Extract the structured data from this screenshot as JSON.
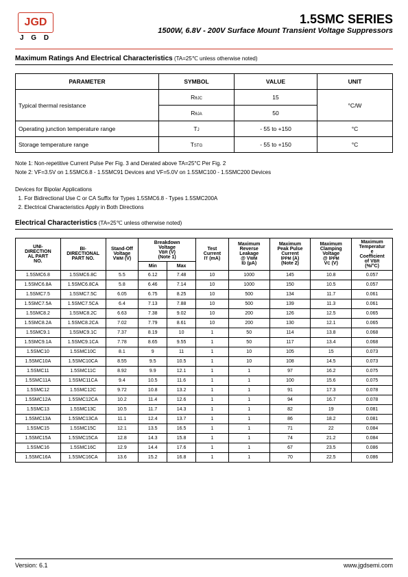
{
  "logo": {
    "mark": "JGD",
    "text": "J G D"
  },
  "title": "1.5SMC SERIES",
  "subtitle": "1500W, 6.8V - 200V Surface Mount Transient Voltage Suppressors",
  "section1": {
    "heading": "Maximum Ratings And Electrical Characteristics",
    "sub": "(TA=25℃ unless otherwise noted)"
  },
  "table1": {
    "headers": [
      "PARAMETER",
      "SYMBOL",
      "VALUE",
      "UNIT"
    ],
    "rows": [
      {
        "param": "Typical thermal resistance",
        "rowspan_param": 2,
        "symbol": "RθJC",
        "value": "15",
        "unit": "°C/W",
        "rowspan_unit": 2
      },
      {
        "symbol": "RθJA",
        "value": "50"
      },
      {
        "param": "Operating junction temperature range",
        "symbol": "TJ",
        "value": "- 55 to +150",
        "unit": "°C"
      },
      {
        "param": "Storage temperature range",
        "symbol": "TSTG",
        "value": "- 55 to +150",
        "unit": "°C"
      }
    ]
  },
  "notes": [
    "Note 1: Non-repetitive Current Pulse Per Fig. 3 and Derated above TA=25°C Per Fig. 2",
    "Note 2: VF=3.5V on 1.5SMC6.8 - 1.5SMC91 Devices and VF=5.0V on 1.5SMC100 - 1.5SMC200 Devices",
    "",
    "Devices for Bipolar Applications",
    "  1. For Bidirectional Use C or CA Suffix for Types 1.5SMC6.8 - Types 1.5SMC200A",
    "  2. Electrical Characteristics Apply in Both Directions"
  ],
  "section2": {
    "heading": "Electrical Characteristics",
    "sub": "(TA=25℃ unless otherwise noted)"
  },
  "table2": {
    "headers_row1": [
      "UNI-DIRECTIONAL PART NO.",
      "BI-DIRECTIONAL PART NO.",
      "Stand-Off Voltage VWM (V)",
      "Breakdown Voltage VBR (V) (Note 1)",
      "Test Current IT (mA)",
      "Maximum Reverse Leakage @ VWM ID (µA)",
      "Maximum Peak Pulse Current IPPM (A) (Note 2)",
      "Maximum Clamping Voltage @ IPPM VC (V)",
      "Maximum Temperature Coefficient of VBR (%/°C)"
    ],
    "sub_headers": [
      "Min",
      "Max"
    ],
    "rows": [
      [
        "1.5SMC6.8",
        "1.5SMC6.8C",
        "5.5",
        "6.12",
        "7.48",
        "10",
        "1000",
        "145",
        "10.8",
        "0.057"
      ],
      [
        "1.5SMC6.8A",
        "1.5SMC6.8CA",
        "5.8",
        "6.46",
        "7.14",
        "10",
        "1000",
        "150",
        "10.5",
        "0.057"
      ],
      [
        "1.5SMC7.5",
        "1.5SMC7.5C",
        "6.05",
        "6.75",
        "8.25",
        "10",
        "500",
        "134",
        "11.7",
        "0.061"
      ],
      [
        "1.5SMC7.5A",
        "1.5SMC7.5CA",
        "6.4",
        "7.13",
        "7.88",
        "10",
        "500",
        "139",
        "11.3",
        "0.061"
      ],
      [
        "1.5SMC8.2",
        "1.5SMC8.2C",
        "6.63",
        "7.38",
        "9.02",
        "10",
        "200",
        "126",
        "12.5",
        "0.065"
      ],
      [
        "1.5SMC8.2A",
        "1.5SMC8.2CA",
        "7.02",
        "7.79",
        "8.61",
        "10",
        "200",
        "130",
        "12.1",
        "0.065"
      ],
      [
        "1.5SMC9.1",
        "1.5SMC9.1C",
        "7.37",
        "8.19",
        "10",
        "1",
        "50",
        "114",
        "13.8",
        "0.068"
      ],
      [
        "1.5SMC9.1A",
        "1.5SMC9.1CA",
        "7.78",
        "8.65",
        "9.55",
        "1",
        "50",
        "117",
        "13.4",
        "0.068"
      ],
      [
        "1.5SMC10",
        "1.5SMC10C",
        "8.1",
        "9",
        "11",
        "1",
        "10",
        "105",
        "15",
        "0.073"
      ],
      [
        "1.5SMC10A",
        "1.5SMC10CA",
        "8.55",
        "9.5",
        "10.5",
        "1",
        "10",
        "108",
        "14.5",
        "0.073"
      ],
      [
        "1.5SMC11",
        "1.5SMC11C",
        "8.92",
        "9.9",
        "12.1",
        "1",
        "1",
        "97",
        "16.2",
        "0.075"
      ],
      [
        "1.5SMC11A",
        "1.5SMC11CA",
        "9.4",
        "10.5",
        "11.6",
        "1",
        "1",
        "100",
        "15.6",
        "0.075"
      ],
      [
        "1.5SMC12",
        "1.5SMC12C",
        "9.72",
        "10.8",
        "13.2",
        "1",
        "1",
        "91",
        "17.3",
        "0.078"
      ],
      [
        "1.5SMC12A",
        "1.5SMC12CA",
        "10.2",
        "11.4",
        "12.6",
        "1",
        "1",
        "94",
        "16.7",
        "0.078"
      ],
      [
        "1.5SMC13",
        "1.5SMC13C",
        "10.5",
        "11.7",
        "14.3",
        "1",
        "1",
        "82",
        "19",
        "0.081"
      ],
      [
        "1.5SMC13A",
        "1.5SMC13CA",
        "11.1",
        "12.4",
        "13.7",
        "1",
        "1",
        "86",
        "18.2",
        "0.081"
      ],
      [
        "1.5SMC15",
        "1.5SMC15C",
        "12.1",
        "13.5",
        "16.5",
        "1",
        "1",
        "71",
        "22",
        "0.084"
      ],
      [
        "1.5SMC15A",
        "1.5SMC15CA",
        "12.8",
        "14.3",
        "15.8",
        "1",
        "1",
        "74",
        "21.2",
        "0.084"
      ],
      [
        "1.5SMC16",
        "1.5SMC16C",
        "12.9",
        "14.4",
        "17.6",
        "1",
        "1",
        "67",
        "23.5",
        "0.086"
      ],
      [
        "1.5SMC16A",
        "1.5SMC16CA",
        "13.6",
        "15.2",
        "16.8",
        "1",
        "1",
        "70",
        "22.5",
        "0.086"
      ]
    ]
  },
  "footer": {
    "version": "Version: 6.1",
    "url": "www.jgdsemi.com"
  }
}
